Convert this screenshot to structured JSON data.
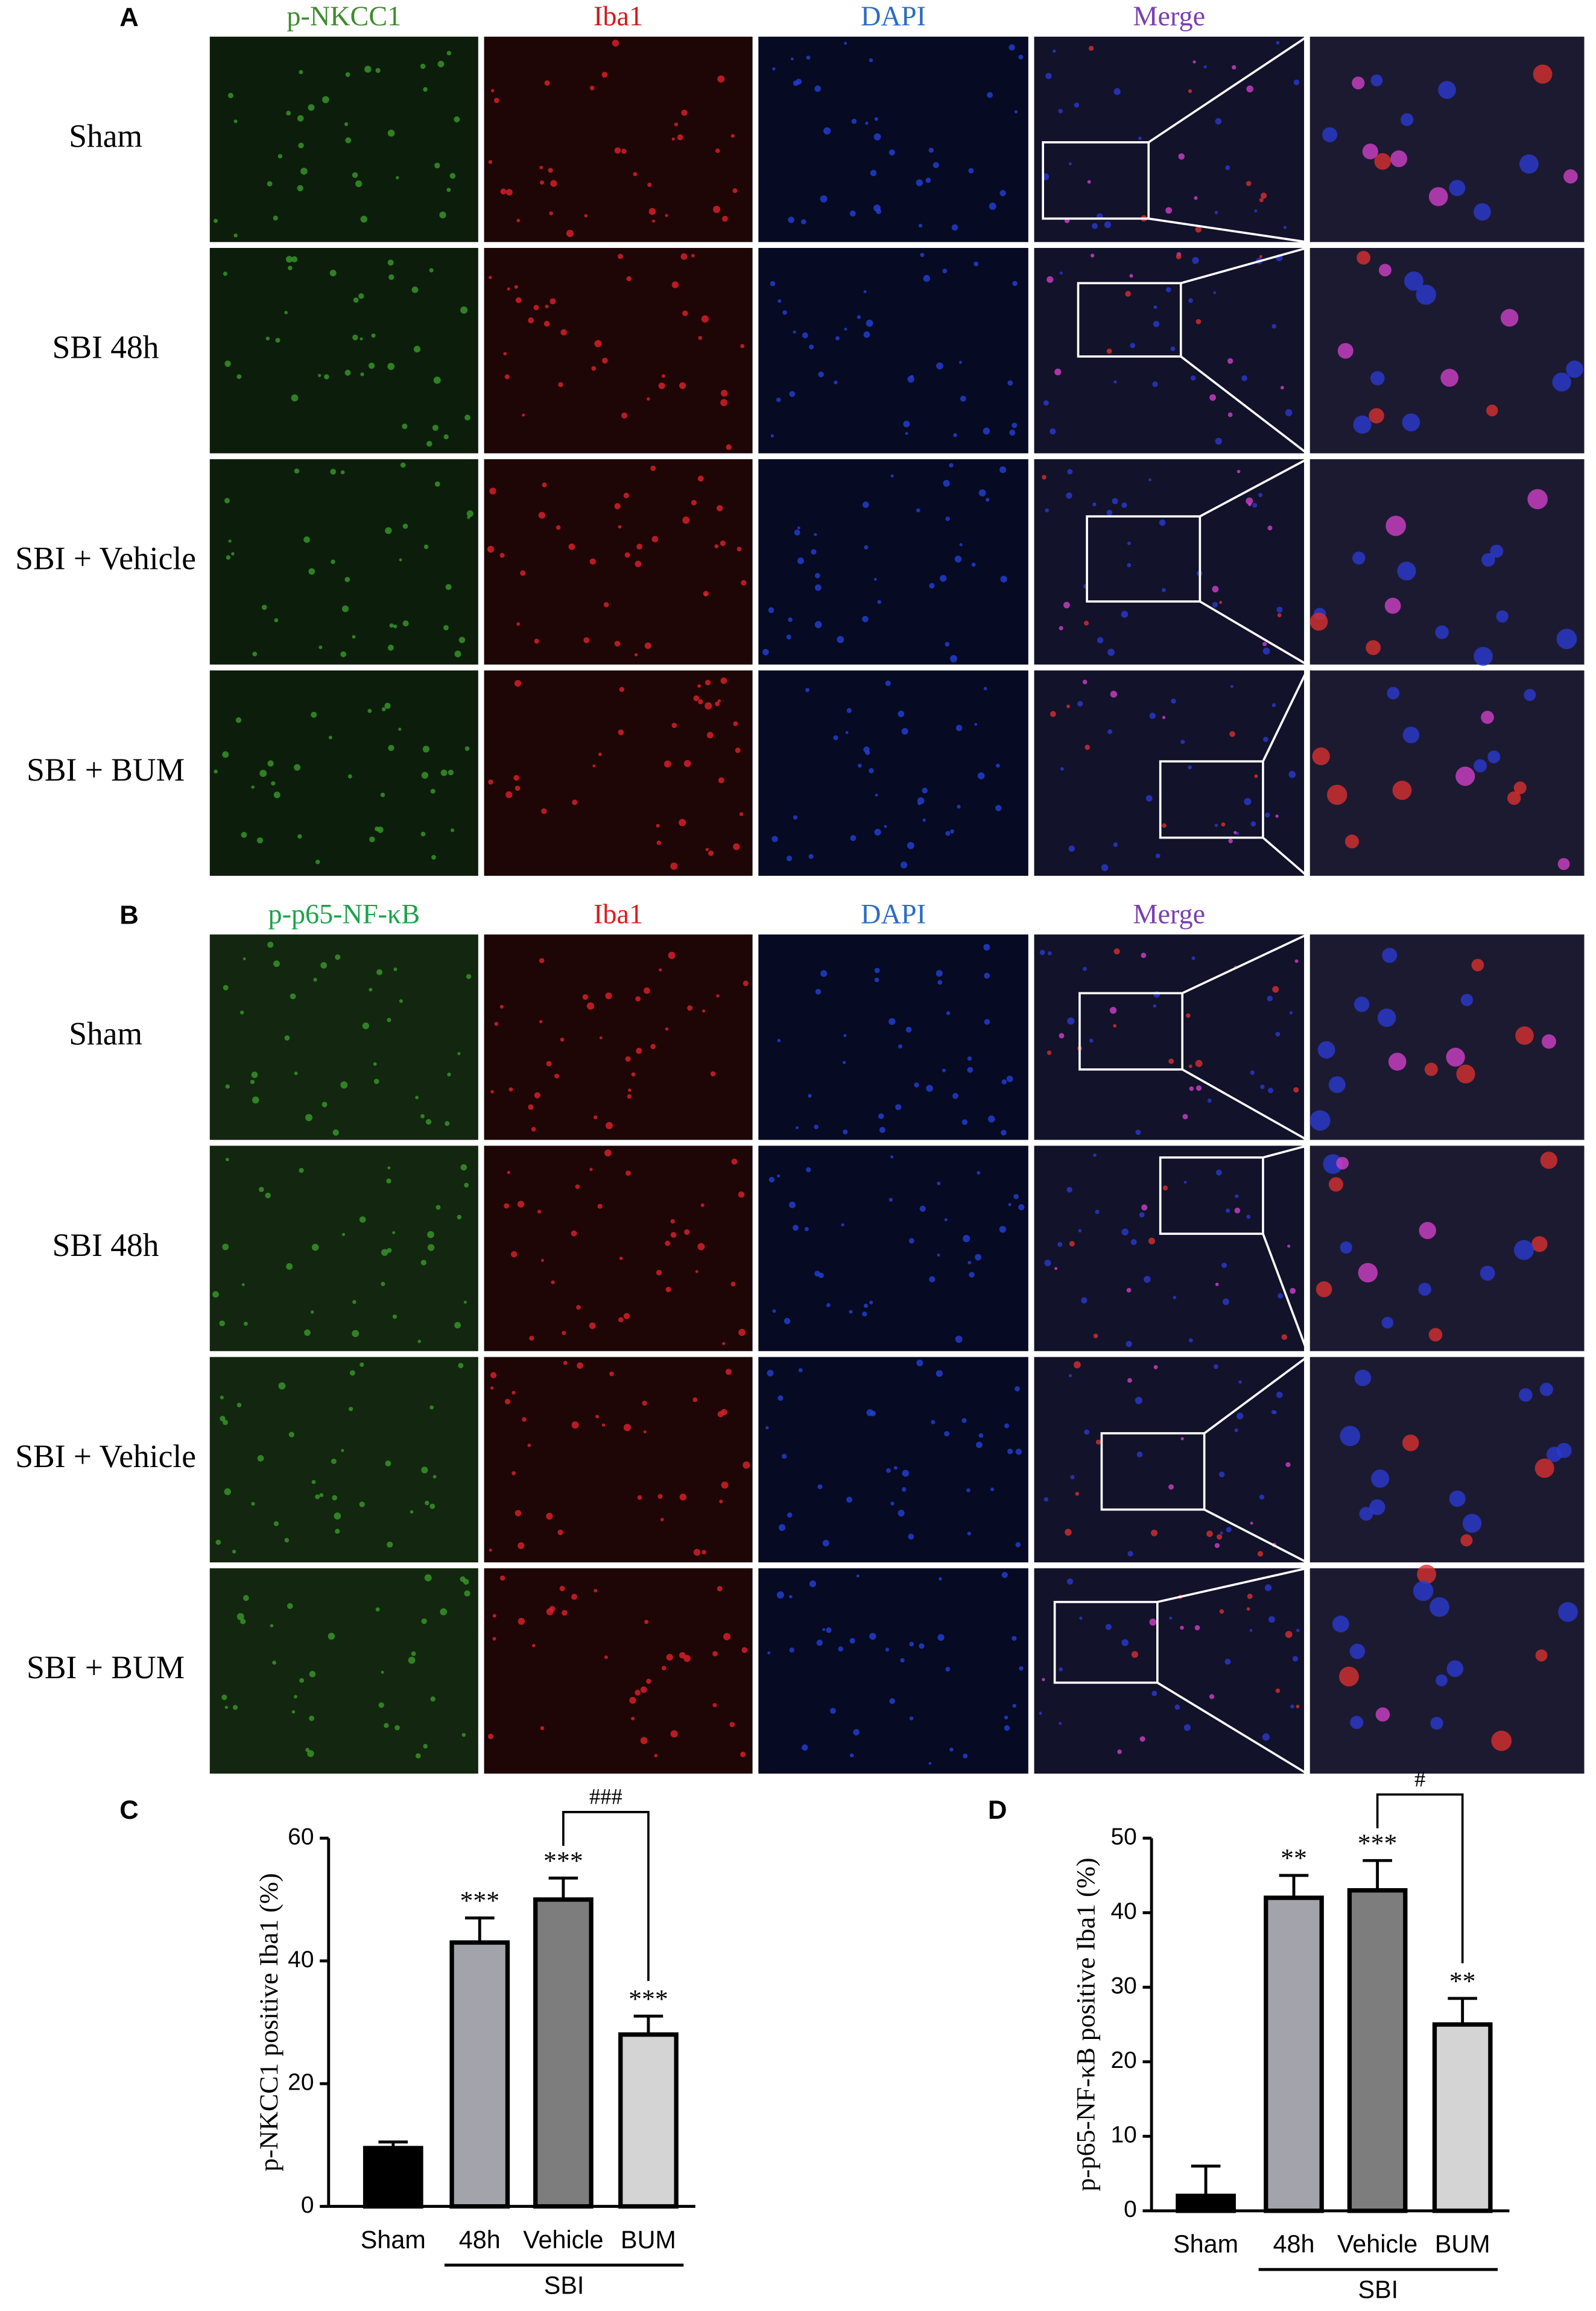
{
  "panels": [
    {
      "letter": "A",
      "channels": [
        "p-NKCC1",
        "Iba1",
        "DAPI",
        "Merge"
      ],
      "channel_colors": [
        "#3f8a2e",
        "#d11a1a",
        "#2a6cc4",
        "#7b3fb0"
      ],
      "groups": [
        "Sham",
        "SBI 48h",
        "SBI + Vehicle",
        "SBI + BUM"
      ]
    },
    {
      "letter": "B",
      "channels": [
        "p-p65-NF-κB",
        "Iba1",
        "DAPI",
        "Merge"
      ],
      "channel_colors": [
        "#1aa34a",
        "#e01b1b",
        "#2a6cc4",
        "#7b3fb0"
      ],
      "groups": [
        "Sham",
        "SBI 48h",
        "SBI + Vehicle",
        "SBI + BUM"
      ]
    }
  ],
  "chart_data": [
    {
      "type": "bar",
      "panel_label": "C",
      "y_label": "p-NKCC1 positive Iba1 (%)",
      "categories": [
        "Sham",
        "48h",
        "Vehicle",
        "BUM"
      ],
      "values": [
        9.5,
        43,
        50,
        28
      ],
      "errors": [
        1,
        4,
        3.5,
        3
      ],
      "colors": [
        "#000000",
        "#a3a3ab",
        "#7d7d7d",
        "#d4d4d4"
      ],
      "annotations": [
        null,
        "***",
        "***",
        "***"
      ],
      "bracket": {
        "label": "###",
        "categories": [
          "Vehicle",
          "BUM"
        ]
      },
      "group": {
        "label": "SBI",
        "categories": [
          "48h",
          "Vehicle",
          "BUM"
        ]
      },
      "ylim": [
        0,
        60
      ],
      "yticks": [
        0,
        20,
        40,
        60
      ]
    },
    {
      "type": "bar",
      "panel_label": "D",
      "y_label": "p-p65-NF-κB positive Iba1 (%)",
      "categories": [
        "Sham",
        "48h",
        "Vehicle",
        "BUM"
      ],
      "values": [
        2,
        42,
        43,
        25
      ],
      "errors": [
        4,
        3,
        4,
        3.5
      ],
      "colors": [
        "#000000",
        "#a3a3ab",
        "#7d7d7d",
        "#d4d4d4"
      ],
      "annotations": [
        null,
        "**",
        "***",
        "**"
      ],
      "bracket": {
        "label": "#",
        "categories": [
          "Vehicle",
          "BUM"
        ]
      },
      "group": {
        "label": "SBI",
        "categories": [
          "48h",
          "Vehicle",
          "BUM"
        ]
      },
      "ylim": [
        0,
        50
      ],
      "yticks": [
        0,
        10,
        20,
        30,
        40,
        50
      ]
    }
  ]
}
